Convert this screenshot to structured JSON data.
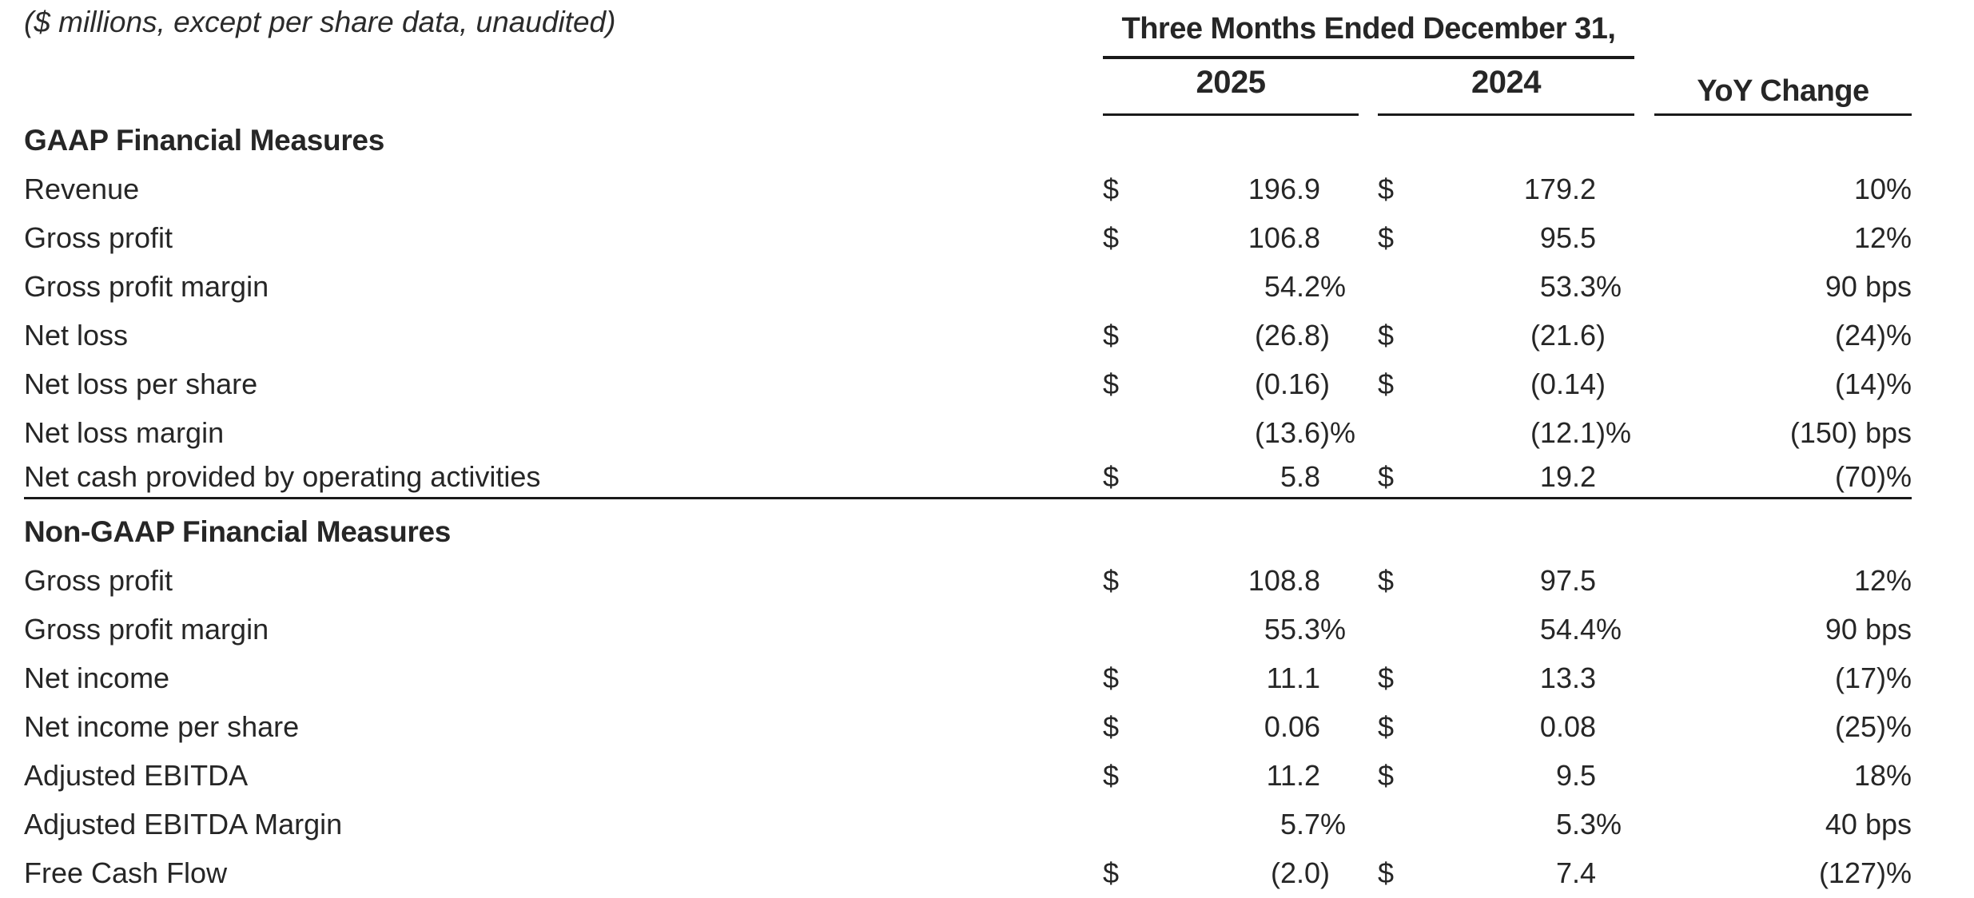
{
  "note": "($ millions, except per share data, unaudited)",
  "header": {
    "period": "Three Months Ended December 31,",
    "col_2025": "2025",
    "col_2024": "2024",
    "col_yoy": "YoY Change"
  },
  "colors": {
    "text": "#262626",
    "line": "#1a1a1a",
    "background": "#ffffff"
  },
  "sections": [
    {
      "id": "gaap",
      "title": "GAAP Financial Measures",
      "rows": [
        {
          "label": "Revenue",
          "currency": "$",
          "y2025": "196.9",
          "y2024": "179.2",
          "yoy": "10%"
        },
        {
          "label": "Gross profit",
          "currency": "$",
          "y2025": "106.8",
          "y2024": "95.5",
          "yoy": "12%"
        },
        {
          "label": "Gross profit margin",
          "currency": "",
          "y2025": "54.2%",
          "y2024": "53.3%",
          "yoy": "90 bps"
        },
        {
          "label": "Net loss",
          "currency": "$",
          "y2025": "(26.8)",
          "y2024": "(21.6)",
          "yoy": "(24)%"
        },
        {
          "label": "Net loss per share",
          "currency": "$",
          "y2025": "(0.16)",
          "y2024": "(0.14)",
          "yoy": "(14)%"
        },
        {
          "label": "Net loss margin",
          "currency": "",
          "y2025": "(13.6)%",
          "y2024": "(12.1)%",
          "yoy": "(150) bps"
        },
        {
          "label": "Net cash provided by operating activities",
          "currency": "$",
          "y2025": "5.8",
          "y2024": "19.2",
          "yoy": "(70)%"
        }
      ]
    },
    {
      "id": "non-gaap",
      "title": "Non-GAAP Financial Measures",
      "rows": [
        {
          "label": "Gross profit",
          "currency": "$",
          "y2025": "108.8",
          "y2024": "97.5",
          "yoy": "12%"
        },
        {
          "label": "Gross profit margin",
          "currency": "",
          "y2025": "55.3%",
          "y2024": "54.4%",
          "yoy": "90 bps"
        },
        {
          "label": "Net income",
          "currency": "$",
          "y2025": "11.1",
          "y2024": "13.3",
          "yoy": "(17)%"
        },
        {
          "label": "Net income per share",
          "currency": "$",
          "y2025": "0.06",
          "y2024": "0.08",
          "yoy": "(25)%"
        },
        {
          "label": "Adjusted EBITDA",
          "currency": "$",
          "y2025": "11.2",
          "y2024": "9.5",
          "yoy": "18%"
        },
        {
          "label": "Adjusted EBITDA Margin",
          "currency": "",
          "y2025": "5.7%",
          "y2024": "5.3%",
          "yoy": "40 bps"
        },
        {
          "label": "Free Cash Flow",
          "currency": "$",
          "y2025": "(2.0)",
          "y2024": "7.4",
          "yoy": "(127)%"
        }
      ]
    }
  ]
}
